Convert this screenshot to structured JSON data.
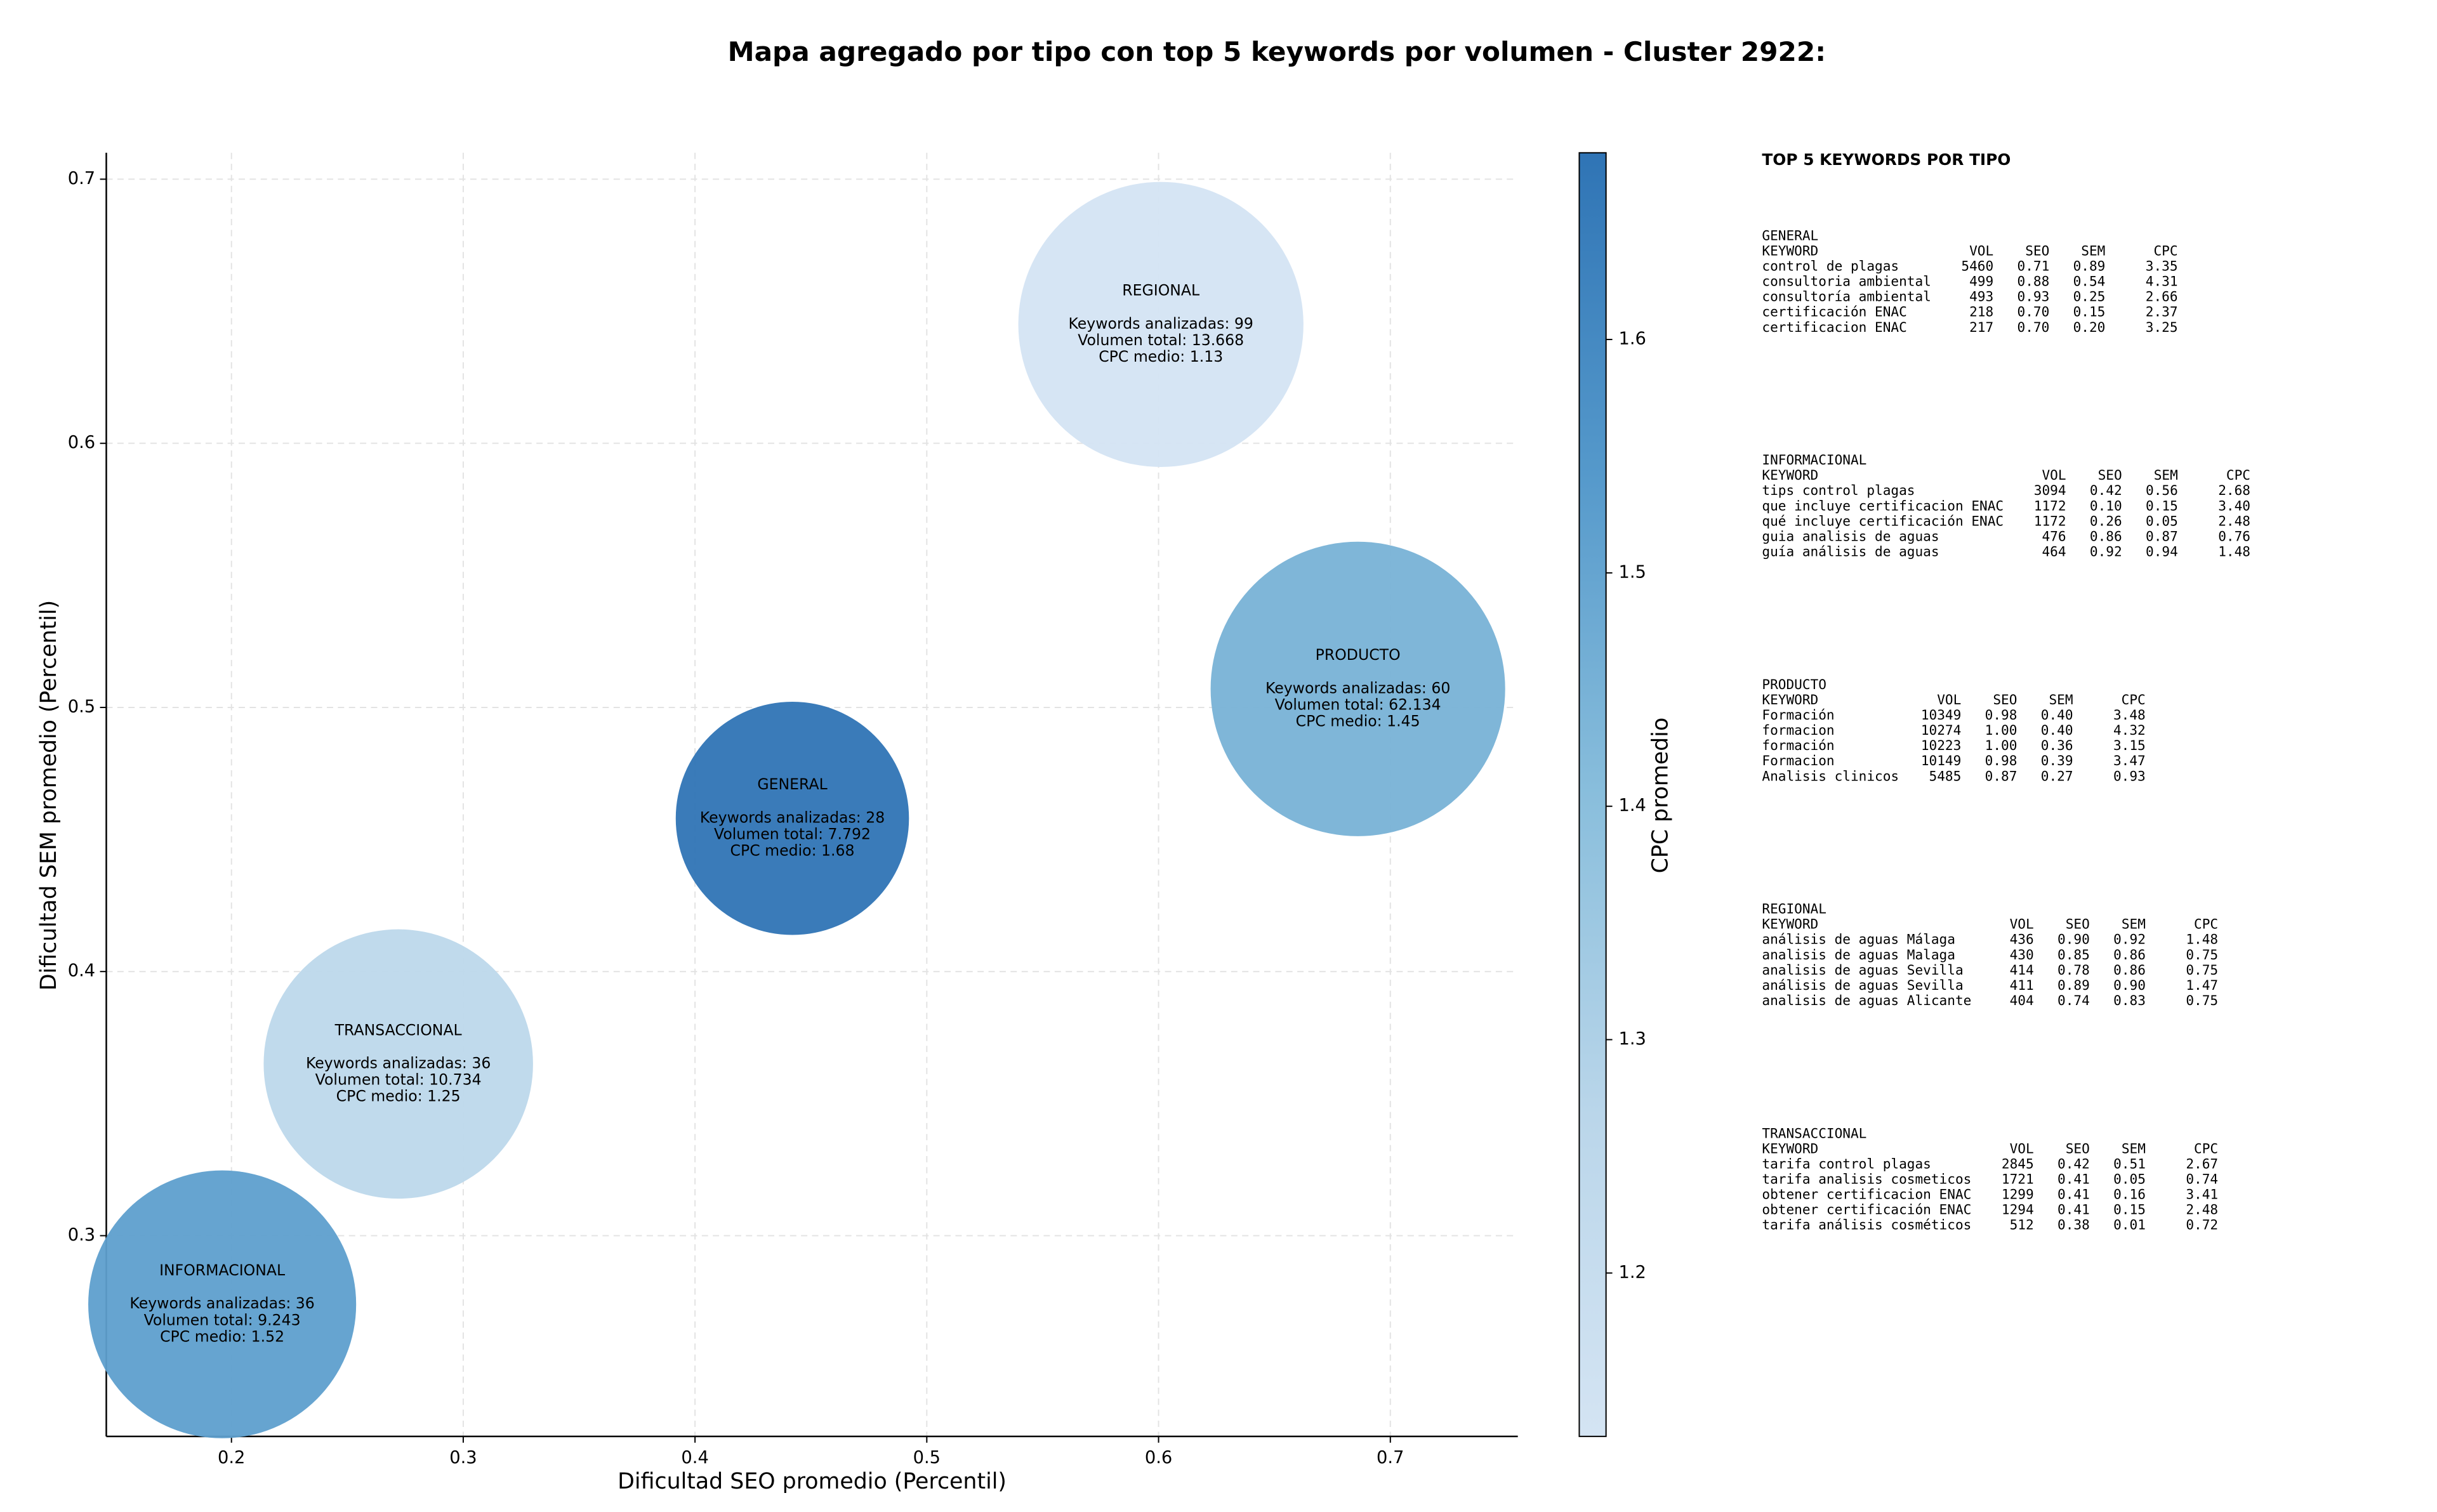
{
  "chart_data": {
    "type": "scatter",
    "title": "Mapa agregado por tipo con top 5 keywords por volumen - Cluster 2922:",
    "x_label": "Dificultad SEO promedio (Percentil)",
    "y_label": "Dificultad SEM promedio (Percentil)",
    "xlim": [
      0.146,
      0.755
    ],
    "ylim": [
      0.224,
      0.71
    ],
    "xticks": [
      0.2,
      0.3,
      0.4,
      0.5,
      0.6,
      0.7
    ],
    "yticks": [
      0.3,
      0.4,
      0.5,
      0.6,
      0.7
    ],
    "grid": true,
    "x": [
      0.601,
      0.686,
      0.442,
      0.272,
      0.196
    ],
    "y": [
      0.645,
      0.507,
      0.458,
      0.365,
      0.274
    ],
    "sizes": [
      8190,
      8740,
      5480,
      7310,
      7230
    ],
    "c_values": [
      1.13,
      1.45,
      1.68,
      1.25,
      1.52
    ],
    "labels": [
      [
        "REGIONAL",
        "Keywords analizadas: 99",
        "Volumen total: 13.668",
        "CPC medio: 1.13"
      ],
      [
        "PRODUCTO",
        "Keywords analizadas: 60",
        "Volumen total: 62.134",
        "CPC medio: 1.45"
      ],
      [
        "GENERAL",
        "Keywords analizadas: 28",
        "Volumen total: 7.792",
        "CPC medio: 1.68"
      ],
      [
        "TRANSACCIONAL",
        "Keywords analizadas: 36",
        "Volumen total: 10.734",
        "CPC medio: 1.25"
      ],
      [
        "INFORMACIONAL",
        "Keywords analizadas: 36",
        "Volumen total: 9.243",
        "CPC medio: 1.52"
      ]
    ],
    "colorbar": {
      "label": "CPC promedio",
      "lim": [
        1.13,
        1.68
      ],
      "ticks": [
        1.2,
        1.3,
        1.4,
        1.5,
        1.6
      ],
      "colormap": [
        "#d4e4f3",
        "#bad6ea",
        "#89bedc",
        "#5599cb",
        "#2f74b5"
      ]
    }
  },
  "side_panel": {
    "title": "TOP 5 KEYWORDS POR TIPO",
    "header": [
      "KEYWORD",
      "VOL",
      "SEO",
      "SEM",
      "CPC"
    ],
    "groups": [
      {
        "name": "GENERAL",
        "rows": [
          [
            "control de plagas",
            "5460",
            "0.71",
            "0.89",
            "3.35"
          ],
          [
            "consultoria ambiental",
            "499",
            "0.88",
            "0.54",
            "4.31"
          ],
          [
            "consultoría ambiental",
            "493",
            "0.93",
            "0.25",
            "2.66"
          ],
          [
            "certificación ENAC",
            "218",
            "0.70",
            "0.15",
            "2.37"
          ],
          [
            "certificacion ENAC",
            "217",
            "0.70",
            "0.20",
            "3.25"
          ]
        ]
      },
      {
        "name": "INFORMACIONAL",
        "rows": [
          [
            "tips control plagas",
            "3094",
            "0.42",
            "0.56",
            "2.68"
          ],
          [
            "que incluye certificacion ENAC",
            "1172",
            "0.10",
            "0.15",
            "3.40"
          ],
          [
            "qué incluye certificación ENAC",
            "1172",
            "0.26",
            "0.05",
            "2.48"
          ],
          [
            "guia analisis de aguas",
            "476",
            "0.86",
            "0.87",
            "0.76"
          ],
          [
            "guía análisis de aguas",
            "464",
            "0.92",
            "0.94",
            "1.48"
          ]
        ]
      },
      {
        "name": "PRODUCTO",
        "rows": [
          [
            "Formación",
            "10349",
            "0.98",
            "0.40",
            "3.48"
          ],
          [
            "formacion",
            "10274",
            "1.00",
            "0.40",
            "4.32"
          ],
          [
            "formación",
            "10223",
            "1.00",
            "0.36",
            "3.15"
          ],
          [
            "Formacion",
            "10149",
            "0.98",
            "0.39",
            "3.47"
          ],
          [
            "Analisis clinicos",
            "5485",
            "0.87",
            "0.27",
            "0.93"
          ]
        ]
      },
      {
        "name": "REGIONAL",
        "rows": [
          [
            "análisis de aguas Málaga",
            "436",
            "0.90",
            "0.92",
            "1.48"
          ],
          [
            "analisis de aguas Malaga",
            "430",
            "0.85",
            "0.86",
            "0.75"
          ],
          [
            "analisis de aguas Sevilla",
            "414",
            "0.78",
            "0.86",
            "0.75"
          ],
          [
            "análisis de aguas Sevilla",
            "411",
            "0.89",
            "0.90",
            "1.47"
          ],
          [
            "analisis de aguas Alicante",
            "404",
            "0.74",
            "0.83",
            "0.75"
          ]
        ]
      },
      {
        "name": "TRANSACCIONAL",
        "rows": [
          [
            "tarifa control plagas",
            "2845",
            "0.42",
            "0.51",
            "2.67"
          ],
          [
            "tarifa analisis cosmeticos",
            "1721",
            "0.41",
            "0.05",
            "0.74"
          ],
          [
            "obtener certificacion ENAC",
            "1299",
            "0.41",
            "0.16",
            "3.41"
          ],
          [
            "obtener certificación ENAC",
            "1294",
            "0.41",
            "0.15",
            "2.48"
          ],
          [
            "tarifa análisis cosméticos",
            "512",
            "0.38",
            "0.01",
            "0.72"
          ]
        ]
      }
    ]
  }
}
